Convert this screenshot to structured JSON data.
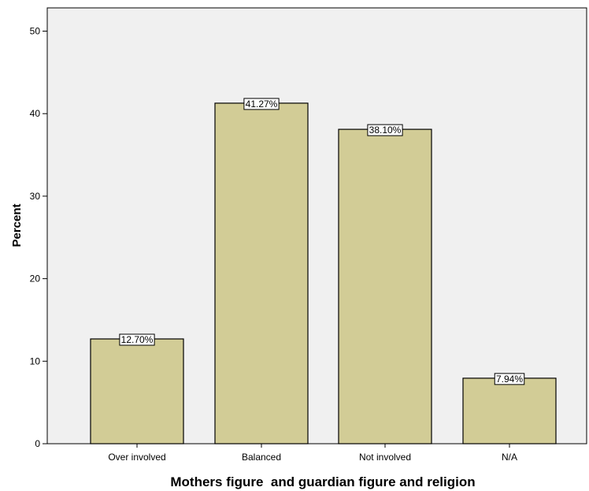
{
  "chart_data": {
    "type": "bar",
    "categories": [
      "Over involved",
      "Balanced",
      "Not involved",
      "N/A"
    ],
    "values": [
      12.7,
      41.27,
      38.1,
      7.94
    ],
    "data_labels": [
      "12.70%",
      "41.27%",
      "38.10%",
      "7.94%"
    ],
    "title": "",
    "xlabel": "Mothers figure  and guardian figure and religion",
    "ylabel": "Percent",
    "ylim": [
      0,
      52
    ],
    "yticks": [
      0,
      10,
      20,
      30,
      40,
      50
    ],
    "grid": false,
    "legend": "none",
    "colors": {
      "bar_fill": "#D2CC96",
      "bar_stroke": "#000000",
      "plot_background": "#F0F0F0",
      "label_box": "#FFFFFF"
    }
  }
}
